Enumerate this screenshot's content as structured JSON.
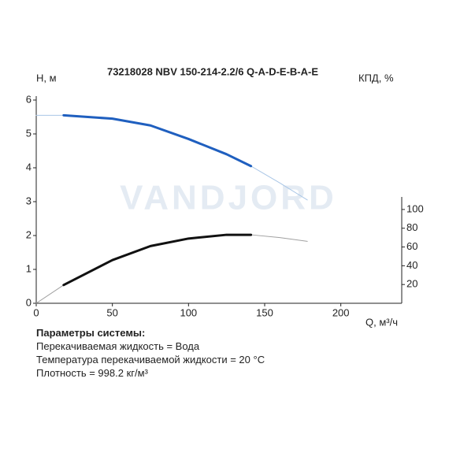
{
  "chart_data": {
    "type": "line",
    "title": "73218028 NBV 150-214-2.2/6 Q-A-D-E-B-A-E",
    "watermark": "VANDJORD",
    "ylabel": "H, м",
    "y2label": "КПД, %",
    "xlabel": "Q, м³/ч",
    "xlim": [
      0,
      240
    ],
    "xticks": [
      0,
      50,
      100,
      150,
      200
    ],
    "ylim": [
      0,
      6
    ],
    "yticks": [
      0,
      1,
      2,
      3,
      4,
      5,
      6
    ],
    "y2lim": [
      0,
      110
    ],
    "y2ticks": [
      20,
      40,
      60,
      80,
      100
    ],
    "x": [
      0,
      18,
      50,
      75,
      100,
      125,
      141,
      160,
      178
    ],
    "series": [
      {
        "color": "#a9c6e6",
        "style": "thin",
        "values": [
          5.55,
          5.55,
          5.45,
          5.25,
          4.85,
          4.4,
          4.05,
          3.55,
          3.05
        ]
      },
      {
        "color": "#1f5fbf",
        "style": "bold",
        "values": [
          null,
          5.55,
          5.45,
          5.25,
          4.85,
          4.4,
          4.05,
          null,
          null
        ]
      },
      {
        "color": "#a0a0a0",
        "style": "thin",
        "axis": "y2",
        "values": [
          0,
          19.5,
          46,
          61,
          69,
          73,
          73,
          70,
          66
        ]
      },
      {
        "color": "#111111",
        "style": "bold",
        "axis": "y2",
        "values": [
          null,
          19.5,
          46,
          61,
          69,
          73,
          73,
          null,
          null
        ]
      }
    ]
  },
  "params": {
    "title": "Параметры системы:",
    "lines": [
      "Перекачиваемая жидкость = Вода",
      "Температура перекачиваемой жидкости = 20 °C",
      "Плотность = 998.2 кг/м³"
    ]
  }
}
